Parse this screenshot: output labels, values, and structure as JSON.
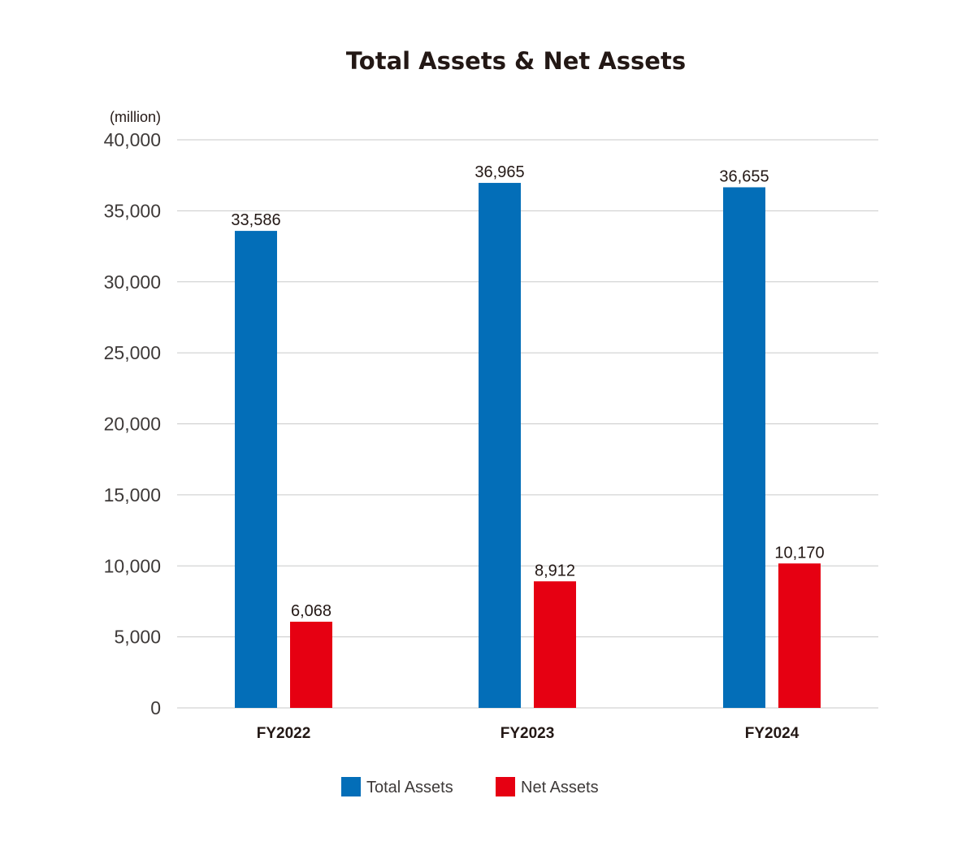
{
  "chart_data": {
    "type": "bar",
    "title": "Total Assets & Net Assets",
    "unit_label": "(million)",
    "xlabel": "",
    "ylabel": "",
    "ylim": [
      0,
      40000
    ],
    "yticks": [
      0,
      5000,
      10000,
      15000,
      20000,
      25000,
      30000,
      35000,
      40000
    ],
    "ytick_labels": [
      "0",
      "5,000",
      "10,000",
      "15,000",
      "20,000",
      "25,000",
      "30,000",
      "35,000",
      "40,000"
    ],
    "grid": true,
    "legend_position": "bottom-center",
    "categories": [
      "FY2022",
      "FY2023",
      "FY2024"
    ],
    "series": [
      {
        "name": "Total Assets",
        "color": "#036eb8",
        "values": [
          33586,
          36965,
          36655
        ],
        "labels": [
          "33,586",
          "36,965",
          "36,655"
        ]
      },
      {
        "name": "Net Assets",
        "color": "#e60012",
        "values": [
          6068,
          8912,
          10170
        ],
        "labels": [
          "6,068",
          "8,912",
          "10,170"
        ]
      }
    ]
  }
}
